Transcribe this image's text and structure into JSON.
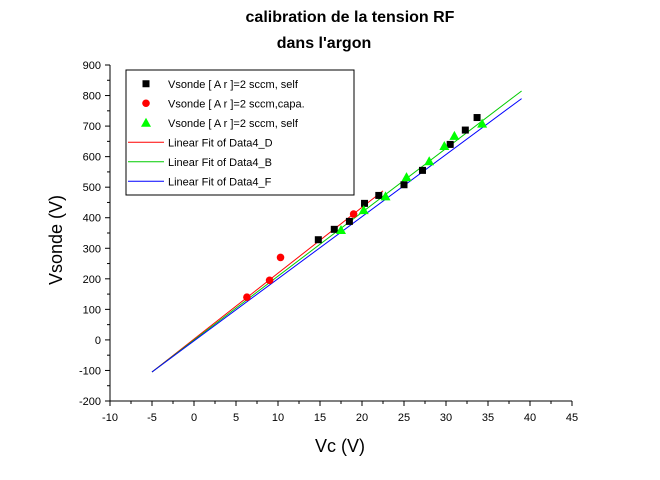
{
  "chart_data": {
    "type": "scatter",
    "title": [
      "calibration de la tension RF",
      "dans l'argon"
    ],
    "xlabel": "Vc (V)",
    "ylabel": "Vsonde (V)",
    "xlim": [
      -10,
      45
    ],
    "ylim": [
      -200,
      900
    ],
    "xticks": [
      -10,
      -5,
      0,
      5,
      10,
      15,
      20,
      25,
      30,
      35,
      40,
      45
    ],
    "yticks": [
      -200,
      -100,
      0,
      100,
      200,
      300,
      400,
      500,
      600,
      700,
      800,
      900
    ],
    "grid": false,
    "legend_position": "top-left",
    "series": [
      {
        "name": "Vsonde [ A r ]=2 sccm, self",
        "kind": "scatter",
        "marker": "square",
        "color": "#000000",
        "points": [
          [
            14.8,
            328
          ],
          [
            16.7,
            362
          ],
          [
            18.5,
            388
          ],
          [
            20.3,
            447
          ],
          [
            22.0,
            473
          ],
          [
            25.0,
            508
          ],
          [
            27.2,
            555
          ],
          [
            30.5,
            640
          ],
          [
            32.3,
            687
          ],
          [
            33.7,
            728
          ]
        ]
      },
      {
        "name": "Vsonde [ A r ]=2 sccm,capa.",
        "kind": "scatter",
        "marker": "circle",
        "color": "#ff0000",
        "points": [
          [
            6.3,
            140
          ],
          [
            9.0,
            195
          ],
          [
            10.3,
            270
          ],
          [
            19.0,
            412
          ]
        ]
      },
      {
        "name": "Vsonde [ A r ]=2 sccm, self",
        "kind": "scatter",
        "marker": "triangle",
        "color": "#00ff00",
        "points": [
          [
            17.5,
            360
          ],
          [
            20.2,
            425
          ],
          [
            22.8,
            470
          ],
          [
            25.3,
            533
          ],
          [
            28.0,
            585
          ],
          [
            29.8,
            635
          ],
          [
            31.0,
            668
          ],
          [
            34.3,
            708
          ]
        ]
      },
      {
        "name": "Linear Fit of Data4_D",
        "kind": "line",
        "color": "#ff0000",
        "points": [
          [
            -5,
            -105
          ],
          [
            22.5,
            488
          ]
        ]
      },
      {
        "name": "Linear Fit of Data4_B",
        "kind": "line",
        "color": "#00cc00",
        "points": [
          [
            -5,
            -105
          ],
          [
            39,
            815
          ]
        ]
      },
      {
        "name": "Linear Fit of Data4_F",
        "kind": "line",
        "color": "#0000ff",
        "points": [
          [
            -5,
            -105
          ],
          [
            39,
            790
          ]
        ]
      }
    ]
  }
}
